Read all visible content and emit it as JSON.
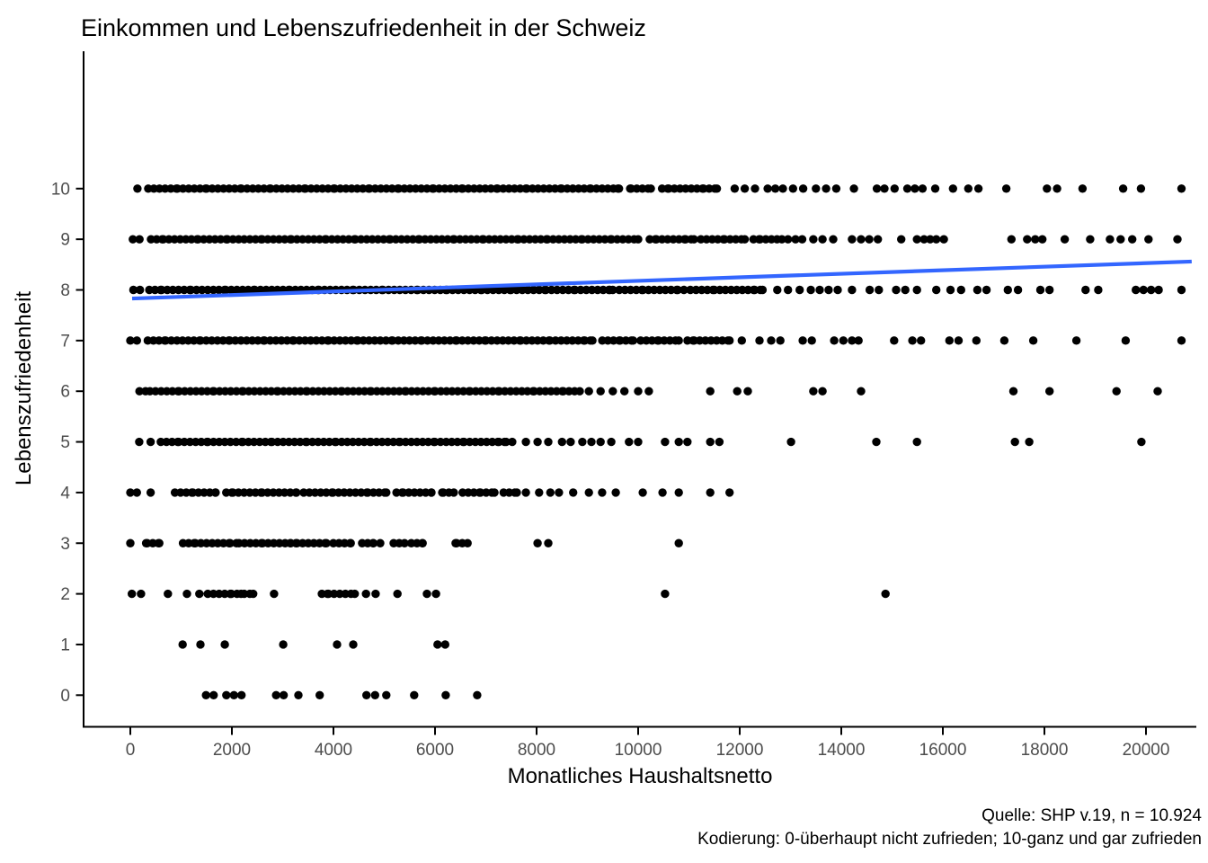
{
  "title": "Einkommen und Lebenszufriedenheit in der Schweiz",
  "axes": {
    "x": {
      "label": "Monatliches Haushaltsnetto",
      "tick_labels": [
        "0",
        "2000",
        "4000",
        "6000",
        "8000",
        "10000",
        "12000",
        "14000",
        "16000",
        "18000",
        "20000"
      ]
    },
    "y": {
      "label": "Lebenszufriedenheit",
      "tick_labels": [
        "0",
        "1",
        "2",
        "3",
        "4",
        "5",
        "6",
        "7",
        "8",
        "9",
        "10"
      ]
    }
  },
  "caption": {
    "line1": "Quelle: SHP v.19, n = 10.924",
    "line2": "Kodierung: 0-überhaupt nicht zufrieden; 10-ganz und gar zufrieden"
  },
  "colors": {
    "point": "#000000",
    "regression_line": "#3366FF",
    "axis_text": "#4D4D4D",
    "axis_line": "#000000",
    "title_text": "#000000",
    "background": "#FFFFFF"
  },
  "chart_data": {
    "type": "scatter",
    "title": "Einkommen und Lebenszufriedenheit in der Schweiz",
    "xlabel": "Monatliches Haushaltsnetto",
    "ylabel": "Lebenszufriedenheit",
    "xlim": [
      -900,
      20970
    ],
    "ylim": [
      -0.62,
      12.7
    ],
    "x_ticks": [
      0,
      2000,
      4000,
      6000,
      8000,
      10000,
      12000,
      14000,
      16000,
      18000,
      20000
    ],
    "y_ticks": [
      0,
      1,
      2,
      3,
      4,
      5,
      6,
      7,
      8,
      9,
      10
    ],
    "grid": "off",
    "legend": "none",
    "n_label": "n = 10.924",
    "rows": [
      {
        "y": 10,
        "segments": [
          [
            380,
            9600
          ],
          [
            9800,
            10250
          ],
          [
            10450,
            11550
          ]
        ],
        "points": [
          140,
          11900,
          12100,
          12300,
          12550,
          12700,
          12850,
          13050,
          13250,
          13500,
          13700,
          13900,
          14250,
          14700,
          14850,
          15050,
          15300,
          15450,
          15600,
          15850,
          16200,
          16500,
          16700,
          17250,
          18050,
          18250,
          18750,
          19550,
          19900,
          20700
        ]
      },
      {
        "y": 9,
        "segments": [
          [
            400,
            10000
          ],
          [
            10200,
            11100
          ],
          [
            11250,
            12100
          ],
          [
            12250,
            12830
          ]
        ],
        "points": [
          50,
          180,
          12950,
          13100,
          13230,
          13450,
          13630,
          13840,
          14210,
          14390,
          14550,
          14720,
          15180,
          15490,
          15630,
          15750,
          15870,
          16020,
          17350,
          17660,
          17820,
          17960,
          18400,
          18900,
          19290,
          19500,
          19730,
          20050,
          20620
        ]
      },
      {
        "y": 8,
        "segments": [
          [
            360,
            9500
          ],
          [
            9650,
            10900
          ],
          [
            11050,
            11500
          ],
          [
            11650,
            12450
          ]
        ],
        "points": [
          60,
          190,
          12740,
          12950,
          13180,
          13400,
          13575,
          13750,
          13930,
          14210,
          14560,
          14740,
          15080,
          15260,
          15490,
          15870,
          16150,
          16360,
          16680,
          16860,
          17280,
          17480,
          17920,
          18100,
          18810,
          19060,
          19800,
          19950,
          20100,
          20250,
          20700
        ]
      },
      {
        "y": 7,
        "segments": [
          [
            350,
            9100
          ],
          [
            9300,
            9900
          ],
          [
            10050,
            10800
          ],
          [
            10950,
            11800
          ]
        ],
        "points": [
          0,
          130,
          12040,
          12390,
          12620,
          12800,
          13240,
          13420,
          13860,
          14040,
          14210,
          14340,
          15040,
          15400,
          15570,
          16130,
          16310,
          16660,
          17210,
          17780,
          18630,
          19600,
          20700
        ]
      },
      {
        "y": 6,
        "segments": [
          [
            420,
            8850
          ]
        ],
        "points": [
          180,
          300,
          9030,
          9260,
          9500,
          9730,
          10000,
          10210,
          11420,
          11950,
          12160,
          13450,
          13630,
          14390,
          17390,
          18100,
          19420,
          20230
        ]
      },
      {
        "y": 5,
        "segments": [
          [
            600,
            7400
          ]
        ],
        "points": [
          175,
          400,
          7520,
          7790,
          8020,
          8230,
          8500,
          8670,
          8900,
          9080,
          9260,
          9470,
          9820,
          10000,
          10530,
          10800,
          10970,
          11420,
          11600,
          13010,
          14690,
          15490,
          17420,
          17700,
          19910
        ]
      },
      {
        "y": 4,
        "segments": [
          [
            885,
            1680
          ],
          [
            1860,
            3270
          ],
          [
            3450,
            5040
          ],
          [
            5220,
            5930
          ],
          [
            6100,
            6370
          ],
          [
            6550,
            7170
          ],
          [
            7350,
            7610
          ]
        ],
        "points": [
          0,
          130,
          400,
          7790,
          8050,
          8270,
          8440,
          8720,
          9030,
          9290,
          9560,
          10090,
          10480,
          10800,
          11420,
          11800
        ]
      },
      {
        "y": 3,
        "segments": [
          [
            270,
            570
          ],
          [
            1030,
            2090
          ],
          [
            2160,
            3150
          ],
          [
            3220,
            3860
          ],
          [
            4040,
            4340
          ],
          [
            4550,
            4780
          ],
          [
            5220,
            5400
          ],
          [
            5540,
            5750
          ],
          [
            6370,
            6640
          ]
        ],
        "points": [
          0,
          4920,
          8020,
          8230,
          10800
        ]
      },
      {
        "y": 2,
        "segments": [
          [
            1540,
            2180
          ],
          [
            2250,
            2420
          ],
          [
            3750,
            4420
          ]
        ],
        "points": [
          30,
          210,
          740,
          1115,
          1360,
          2830,
          4640,
          4830,
          5260,
          5840,
          6020,
          10530,
          14870
        ]
      },
      {
        "y": 1,
        "segments": [],
        "points": [
          1030,
          1380,
          1860,
          3010,
          4070,
          4390,
          6050,
          6200
        ]
      },
      {
        "y": 0,
        "segments": [],
        "points": [
          1490,
          1640,
          1890,
          2040,
          2190,
          2870,
          3020,
          3310,
          3730,
          4650,
          4820,
          5040,
          5590,
          6210,
          6830
        ]
      }
    ],
    "regression_line": {
      "x_start": 0,
      "x_end": 20900,
      "y_start": 7.83,
      "y_end": 8.56,
      "color": "#3366FF"
    }
  }
}
